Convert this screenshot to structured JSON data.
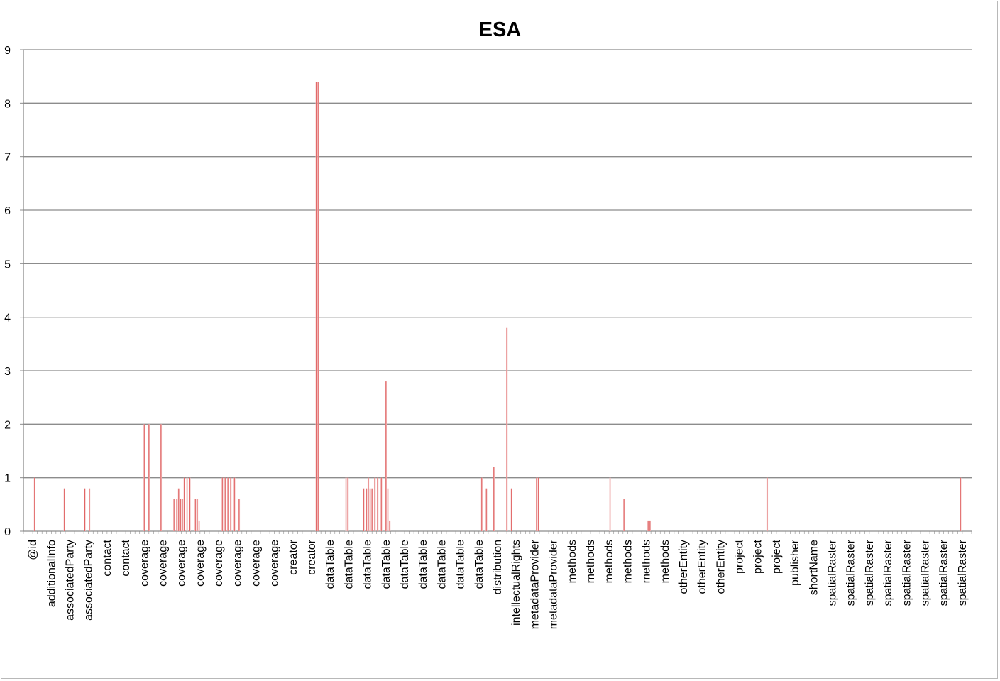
{
  "chart_data": {
    "type": "bar",
    "title": "ESA",
    "xlabel": "",
    "ylabel": "",
    "ylim": [
      0,
      9
    ],
    "yticks": [
      0,
      1,
      2,
      3,
      4,
      5,
      6,
      7,
      8,
      9
    ],
    "grid": true,
    "legend": "none",
    "bar_color": "#e06060",
    "tick_labels": [
      "@id",
      "additionalInfo",
      "associatedParty",
      "associatedParty",
      "contact",
      "contact",
      "coverage",
      "coverage",
      "coverage",
      "coverage",
      "coverage",
      "coverage",
      "coverage",
      "coverage",
      "creator",
      "creator",
      "dataTable",
      "dataTable",
      "dataTable",
      "dataTable",
      "dataTable",
      "dataTable",
      "dataTable",
      "dataTable",
      "dataTable",
      "distribution",
      "intellectualRights",
      "metadataProvider",
      "metadataProvider",
      "methods",
      "methods",
      "methods",
      "methods",
      "methods",
      "methods",
      "otherEntity",
      "otherEntity",
      "otherEntity",
      "project",
      "project",
      "project",
      "publisher",
      "shortName",
      "spatialRaster",
      "spatialRaster",
      "spatialRaster",
      "spatialRaster",
      "spatialRaster",
      "spatialRaster",
      "spatialRaster",
      "spatialRaster"
    ],
    "bars": [
      [
        0.6,
        1.0
      ],
      [
        2.2,
        0.8
      ],
      [
        3.3,
        0.8
      ],
      [
        3.55,
        0.8
      ],
      [
        6.5,
        2.0
      ],
      [
        6.75,
        2.0
      ],
      [
        7.4,
        2.0
      ],
      [
        8.1,
        0.6
      ],
      [
        8.25,
        0.6
      ],
      [
        8.35,
        0.8
      ],
      [
        8.45,
        0.6
      ],
      [
        8.55,
        0.6
      ],
      [
        8.65,
        1.0
      ],
      [
        8.8,
        1.0
      ],
      [
        8.95,
        1.0
      ],
      [
        9.25,
        0.6
      ],
      [
        9.35,
        0.6
      ],
      [
        9.45,
        0.2
      ],
      [
        10.7,
        1.0
      ],
      [
        10.85,
        1.0
      ],
      [
        11.0,
        1.0
      ],
      [
        11.15,
        1.0
      ],
      [
        11.35,
        1.0
      ],
      [
        11.6,
        0.6
      ],
      [
        15.75,
        8.4
      ],
      [
        15.85,
        8.4
      ],
      [
        17.35,
        1.0
      ],
      [
        17.45,
        1.0
      ],
      [
        18.3,
        0.8
      ],
      [
        18.45,
        0.8
      ],
      [
        18.55,
        1.0
      ],
      [
        18.65,
        0.8
      ],
      [
        18.75,
        0.8
      ],
      [
        18.9,
        1.0
      ],
      [
        19.05,
        1.0
      ],
      [
        19.25,
        1.0
      ],
      [
        19.5,
        2.8
      ],
      [
        19.6,
        0.8
      ],
      [
        19.7,
        0.2
      ],
      [
        24.65,
        1.0
      ],
      [
        24.9,
        0.8
      ],
      [
        25.3,
        1.2
      ],
      [
        26.0,
        3.8
      ],
      [
        26.25,
        0.8
      ],
      [
        27.6,
        1.0
      ],
      [
        27.7,
        1.0
      ],
      [
        31.55,
        1.0
      ],
      [
        32.3,
        0.6
      ],
      [
        33.6,
        0.2
      ],
      [
        33.7,
        0.2
      ],
      [
        40.0,
        1.0
      ],
      [
        50.4,
        1.0
      ]
    ]
  }
}
